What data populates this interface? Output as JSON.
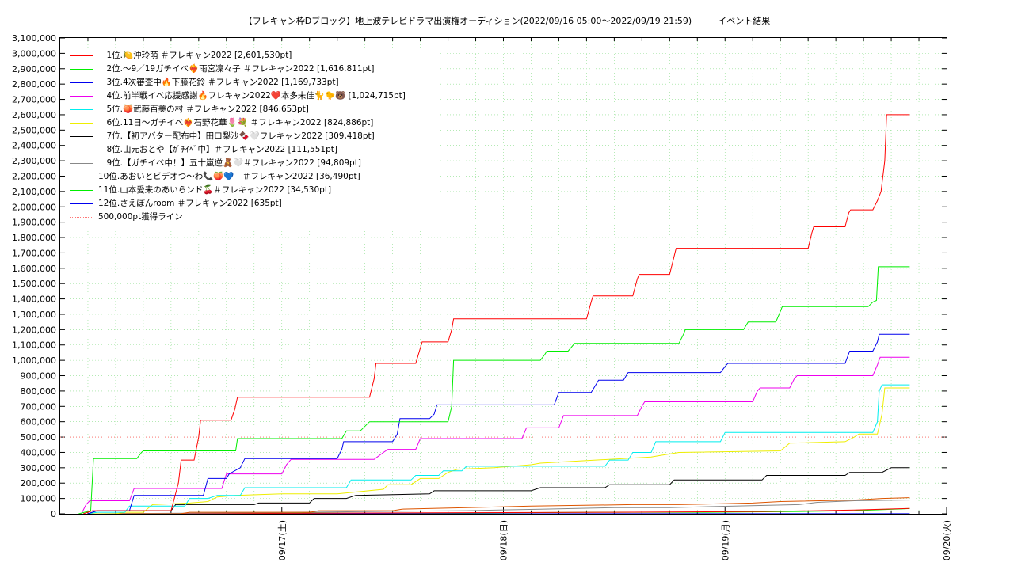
{
  "chart_data": {
    "type": "line",
    "title": "【フレキャン枠Dブロック】地上波テレビドラマ出演権オーディション(2022/09/16 05:00〜2022/09/19 21:59)　　　イベント結果",
    "ylim": [
      0,
      3100000
    ],
    "y_ticks": [
      "0",
      "100,000",
      "200,000",
      "300,000",
      "400,000",
      "500,000",
      "600,000",
      "700,000",
      "800,000",
      "900,000",
      "1,000,000",
      "1,100,000",
      "1,200,000",
      "1,300,000",
      "1,400,000",
      "1,500,000",
      "1,600,000",
      "1,700,000",
      "1,800,000",
      "1,900,000",
      "2,000,000",
      "2,100,000",
      "2,200,000",
      "2,300,000",
      "2,400,000",
      "2,500,000",
      "2,600,000",
      "2,700,000",
      "2,800,000",
      "2,900,000",
      "3,000,000",
      "3,100,000"
    ],
    "x_range_hours": [
      0,
      96
    ],
    "x_ticks": [
      {
        "label": "09/17(土)",
        "hour": 24
      },
      {
        "label": "09/18(日)",
        "hour": 48
      },
      {
        "label": "09/19(月)",
        "hour": 72
      },
      {
        "label": "09/20(火)",
        "hour": 96
      }
    ],
    "grid": true,
    "legend_position": "top-left",
    "series": [
      {
        "name": "　1位.🍋沖玲萌 ＃フレキャン2022 [2,601,530pt]",
        "color": "#ff0000",
        "style": "solid",
        "points": [
          [
            2.5,
            0
          ],
          [
            3.5,
            20000
          ],
          [
            12,
            20000
          ],
          [
            12.8,
            200000
          ],
          [
            13.1,
            350000
          ],
          [
            14.5,
            350000
          ],
          [
            15,
            500000
          ],
          [
            15.2,
            610000
          ],
          [
            18.5,
            610000
          ],
          [
            18.9,
            680000
          ],
          [
            19.2,
            760000
          ],
          [
            33.5,
            760000
          ],
          [
            34,
            880000
          ],
          [
            34.2,
            980000
          ],
          [
            38.5,
            980000
          ],
          [
            39,
            1080000
          ],
          [
            39.2,
            1120000
          ],
          [
            42,
            1120000
          ],
          [
            42.4,
            1200000
          ],
          [
            42.6,
            1270000
          ],
          [
            57,
            1270000
          ],
          [
            57.5,
            1380000
          ],
          [
            57.7,
            1420000
          ],
          [
            62,
            1420000
          ],
          [
            62.5,
            1530000
          ],
          [
            62.7,
            1560000
          ],
          [
            66,
            1560000
          ],
          [
            66.5,
            1680000
          ],
          [
            66.7,
            1730000
          ],
          [
            81,
            1730000
          ],
          [
            81.4,
            1830000
          ],
          [
            81.6,
            1870000
          ],
          [
            85,
            1870000
          ],
          [
            85.4,
            1960000
          ],
          [
            85.6,
            1980000
          ],
          [
            88,
            1980000
          ],
          [
            88.5,
            2040000
          ],
          [
            88.9,
            2100000
          ],
          [
            89.3,
            2300000
          ],
          [
            89.5,
            2600000
          ],
          [
            92,
            2600000
          ]
        ]
      },
      {
        "name": "　2位.〜9／19ガチイベ❤️‍🔥雨宮凜々子 ＃フレキャン2022 [1,616,811pt]",
        "color": "#00ee00",
        "style": "solid",
        "points": [
          [
            2,
            0
          ],
          [
            3.3,
            20000
          ],
          [
            3.6,
            360000
          ],
          [
            8.3,
            360000
          ],
          [
            8.8,
            400000
          ],
          [
            9,
            410000
          ],
          [
            19,
            410000
          ],
          [
            19.2,
            490000
          ],
          [
            30.5,
            490000
          ],
          [
            31,
            540000
          ],
          [
            32.5,
            540000
          ],
          [
            33.5,
            600000
          ],
          [
            42,
            600000
          ],
          [
            42.4,
            700000
          ],
          [
            42.6,
            1000000
          ],
          [
            52,
            1000000
          ],
          [
            52.5,
            1040000
          ],
          [
            52.7,
            1060000
          ],
          [
            55,
            1060000
          ],
          [
            55.7,
            1110000
          ],
          [
            67,
            1110000
          ],
          [
            67.5,
            1170000
          ],
          [
            67.7,
            1200000
          ],
          [
            74,
            1200000
          ],
          [
            74.5,
            1250000
          ],
          [
            77.5,
            1250000
          ],
          [
            78,
            1320000
          ],
          [
            78.2,
            1350000
          ],
          [
            87.5,
            1350000
          ],
          [
            88,
            1380000
          ],
          [
            88.4,
            1390000
          ],
          [
            88.6,
            1610000
          ],
          [
            92,
            1610000
          ]
        ]
      },
      {
        "name": "　3位.4次審査中🔥下藤花鈴 ＃フレキャン2022 [1,169,733pt]",
        "color": "#0000ee",
        "style": "solid",
        "points": [
          [
            3,
            0
          ],
          [
            4,
            20000
          ],
          [
            7.5,
            20000
          ],
          [
            8,
            120000
          ],
          [
            15.5,
            120000
          ],
          [
            16,
            230000
          ],
          [
            18,
            230000
          ],
          [
            18.3,
            260000
          ],
          [
            19.5,
            300000
          ],
          [
            20,
            360000
          ],
          [
            30,
            360000
          ],
          [
            30.5,
            420000
          ],
          [
            30.7,
            470000
          ],
          [
            36,
            470000
          ],
          [
            36.5,
            520000
          ],
          [
            36.8,
            620000
          ],
          [
            40,
            620000
          ],
          [
            40.5,
            650000
          ],
          [
            40.8,
            710000
          ],
          [
            53.5,
            710000
          ],
          [
            54,
            790000
          ],
          [
            57.5,
            790000
          ],
          [
            58,
            840000
          ],
          [
            58.3,
            870000
          ],
          [
            61,
            870000
          ],
          [
            61.5,
            920000
          ],
          [
            71.5,
            920000
          ],
          [
            72,
            960000
          ],
          [
            72.3,
            980000
          ],
          [
            85,
            980000
          ],
          [
            85.5,
            1060000
          ],
          [
            88,
            1060000
          ],
          [
            88.5,
            1120000
          ],
          [
            88.7,
            1170000
          ],
          [
            92,
            1170000
          ]
        ]
      },
      {
        "name": "　4位.前半戦イベ応援感謝🔥フレキャン2022❤️本多未佳🐈🐤🐻 [1,024,715pt]",
        "color": "#ee00ee",
        "style": "solid",
        "points": [
          [
            2.3,
            0
          ],
          [
            2.8,
            60000
          ],
          [
            3.2,
            85000
          ],
          [
            7.5,
            85000
          ],
          [
            8,
            165000
          ],
          [
            17.5,
            165000
          ],
          [
            18,
            260000
          ],
          [
            24,
            260000
          ],
          [
            24.5,
            320000
          ],
          [
            25,
            355000
          ],
          [
            34,
            355000
          ],
          [
            35,
            400000
          ],
          [
            35.5,
            420000
          ],
          [
            38.5,
            420000
          ],
          [
            39,
            490000
          ],
          [
            50,
            490000
          ],
          [
            50.5,
            560000
          ],
          [
            54,
            560000
          ],
          [
            54.5,
            640000
          ],
          [
            62.5,
            640000
          ],
          [
            63,
            700000
          ],
          [
            63.3,
            730000
          ],
          [
            75,
            730000
          ],
          [
            75.5,
            800000
          ],
          [
            75.8,
            820000
          ],
          [
            79,
            820000
          ],
          [
            79.5,
            880000
          ],
          [
            79.8,
            900000
          ],
          [
            88,
            900000
          ],
          [
            88.5,
            970000
          ],
          [
            88.8,
            1020000
          ],
          [
            92,
            1020000
          ]
        ]
      },
      {
        "name": "　5位.🍑武藤百美の村 ＃フレキャン2022 [846,653pt]",
        "color": "#00eeee",
        "style": "solid",
        "points": [
          [
            3,
            0
          ],
          [
            4,
            10000
          ],
          [
            7,
            10000
          ],
          [
            7.5,
            50000
          ],
          [
            13.5,
            50000
          ],
          [
            14,
            100000
          ],
          [
            16,
            100000
          ],
          [
            17,
            120000
          ],
          [
            19.5,
            120000
          ],
          [
            20,
            170000
          ],
          [
            31,
            170000
          ],
          [
            31.5,
            220000
          ],
          [
            38,
            220000
          ],
          [
            38.5,
            250000
          ],
          [
            41,
            250000
          ],
          [
            41.5,
            280000
          ],
          [
            43.5,
            280000
          ],
          [
            44,
            310000
          ],
          [
            59,
            310000
          ],
          [
            59.5,
            350000
          ],
          [
            61.5,
            350000
          ],
          [
            62,
            400000
          ],
          [
            64,
            400000
          ],
          [
            64.5,
            470000
          ],
          [
            71.5,
            470000
          ],
          [
            72,
            530000
          ],
          [
            88,
            530000
          ],
          [
            88.5,
            600000
          ],
          [
            88.7,
            800000
          ],
          [
            89,
            840000
          ],
          [
            92,
            840000
          ]
        ]
      },
      {
        "name": "　6位.11日〜ガチイベ❤️‍🔥石野花華🌷💐 ＃フレキャン2022 [824,886pt]",
        "color": "#eeee00",
        "style": "solid",
        "points": [
          [
            3,
            0
          ],
          [
            6,
            0
          ],
          [
            7,
            10000
          ],
          [
            9,
            10000
          ],
          [
            10,
            60000
          ],
          [
            14,
            70000
          ],
          [
            16,
            80000
          ],
          [
            17,
            110000
          ],
          [
            19,
            120000
          ],
          [
            24,
            130000
          ],
          [
            30,
            130000
          ],
          [
            35,
            160000
          ],
          [
            35.5,
            190000
          ],
          [
            38,
            190000
          ],
          [
            39,
            230000
          ],
          [
            41,
            230000
          ],
          [
            42,
            270000
          ],
          [
            43,
            290000
          ],
          [
            47,
            300000
          ],
          [
            51,
            320000
          ],
          [
            52,
            330000
          ],
          [
            64,
            370000
          ],
          [
            65,
            380000
          ],
          [
            67,
            400000
          ],
          [
            78,
            410000
          ],
          [
            79,
            460000
          ],
          [
            85,
            470000
          ],
          [
            86,
            500000
          ],
          [
            86.5,
            520000
          ],
          [
            88.5,
            520000
          ],
          [
            89,
            650000
          ],
          [
            89.3,
            820000
          ],
          [
            92,
            820000
          ]
        ]
      },
      {
        "name": "　7位.【初アバター配布中】田口梨沙🍫🤍フレキャン2022 [309,418pt]",
        "color": "#000000",
        "style": "solid",
        "points": [
          [
            3,
            0
          ],
          [
            4,
            20000
          ],
          [
            12,
            20000
          ],
          [
            12.5,
            60000
          ],
          [
            21,
            60000
          ],
          [
            21.5,
            70000
          ],
          [
            27,
            70000
          ],
          [
            27.5,
            100000
          ],
          [
            31,
            100000
          ],
          [
            32,
            120000
          ],
          [
            40,
            130000
          ],
          [
            40.5,
            150000
          ],
          [
            51,
            150000
          ],
          [
            52,
            170000
          ],
          [
            59,
            170000
          ],
          [
            59.5,
            190000
          ],
          [
            66,
            190000
          ],
          [
            66.5,
            220000
          ],
          [
            76,
            220000
          ],
          [
            76.5,
            250000
          ],
          [
            85,
            250000
          ],
          [
            85.5,
            270000
          ],
          [
            89,
            270000
          ],
          [
            90,
            300000
          ],
          [
            92,
            300000
          ]
        ]
      },
      {
        "name": "　8位.山元おとや【ｶﾞﾁｲﾍﾞ中】＃フレキャン2022 [111,551pt]",
        "color": "#dd5500",
        "style": "solid",
        "points": [
          [
            3,
            0
          ],
          [
            13,
            0
          ],
          [
            14,
            10000
          ],
          [
            27,
            10000
          ],
          [
            28,
            20000
          ],
          [
            36,
            20000
          ],
          [
            37,
            30000
          ],
          [
            44,
            40000
          ],
          [
            51,
            50000
          ],
          [
            62,
            60000
          ],
          [
            67,
            60000
          ],
          [
            75,
            70000
          ],
          [
            78,
            80000
          ],
          [
            86,
            90000
          ],
          [
            89,
            100000
          ],
          [
            92,
            105000
          ]
        ]
      },
      {
        "name": "　9位.【ガチイベ中！】五十嵐逆🧸🤍＃フレキャン2022 [94,809pt]",
        "color": "#888888",
        "style": "solid",
        "points": [
          [
            3,
            0
          ],
          [
            18,
            5000
          ],
          [
            26,
            10000
          ],
          [
            34,
            15000
          ],
          [
            44,
            20000
          ],
          [
            52,
            30000
          ],
          [
            60,
            40000
          ],
          [
            66,
            40000
          ],
          [
            73,
            50000
          ],
          [
            80,
            60000
          ],
          [
            82,
            75000
          ],
          [
            86,
            85000
          ],
          [
            92,
            90000
          ]
        ]
      },
      {
        "name": "10位.あおいとビデオつ〜わ📞🍑💙　＃フレキャン2022 [36,490pt]",
        "color": "#ff0000",
        "style": "solid",
        "points": [
          [
            3,
            0
          ],
          [
            60,
            10000
          ],
          [
            76,
            15000
          ],
          [
            82,
            20000
          ],
          [
            86,
            25000
          ],
          [
            92,
            35000
          ]
        ]
      },
      {
        "name": "11位.山本愛来のあいらンド🍒＃フレキャン2022 [34,530pt]",
        "color": "#00ee00",
        "style": "solid",
        "points": [
          [
            3,
            0
          ],
          [
            30,
            5000
          ],
          [
            44,
            5000
          ],
          [
            58,
            10000
          ],
          [
            70,
            10000
          ],
          [
            80,
            15000
          ],
          [
            86,
            20000
          ],
          [
            92,
            34000
          ]
        ]
      },
      {
        "name": "12位.さえぼんroom ＃フレキャン2022 [635pt]",
        "color": "#0000ee",
        "style": "solid",
        "points": [
          [
            3,
            0
          ],
          [
            92,
            600
          ]
        ]
      },
      {
        "name": "500,000pt獲得ライン",
        "color": "#ff7777",
        "style": "dotted",
        "points": [
          [
            0,
            500000
          ],
          [
            96,
            500000
          ]
        ]
      }
    ]
  }
}
